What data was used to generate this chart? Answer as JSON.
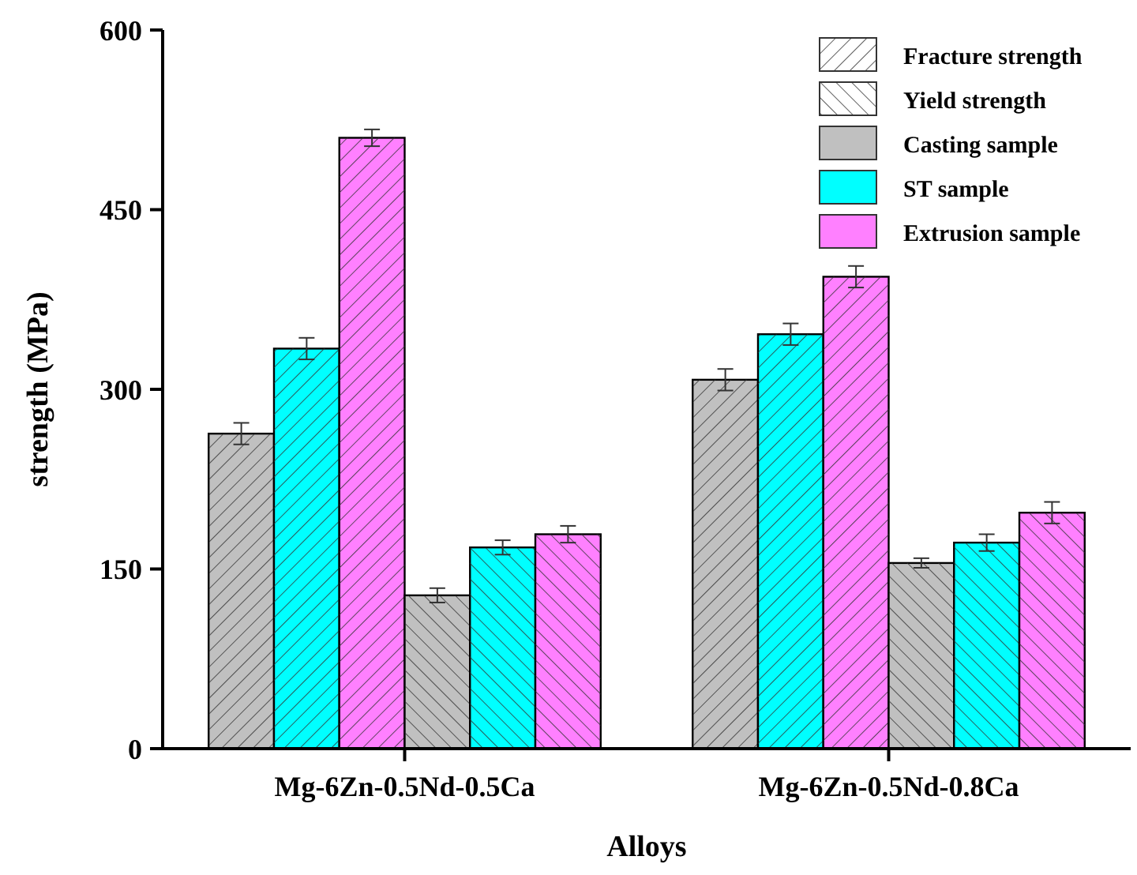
{
  "chart_data": {
    "type": "bar",
    "xlabel": "Alloys",
    "ylabel": "strength (MPa)",
    "categories": [
      "Mg-6Zn-0.5Nd-0.5Ca",
      "Mg-6Zn-0.5Nd-0.8Ca"
    ],
    "series": [
      {
        "name": "Casting sample",
        "color": "#c0c0c0",
        "values": [
          263,
          308
        ],
        "errors": [
          9,
          9
        ]
      },
      {
        "name": "ST sample",
        "color": "#00ffff",
        "values": [
          334,
          346
        ],
        "errors": [
          9,
          9
        ]
      },
      {
        "name": "Extrusion sample",
        "color": "#ff80ff",
        "values": [
          510,
          394
        ],
        "errors": [
          7,
          9
        ]
      },
      {
        "color": "#c0c0c0",
        "values": [
          128,
          155
        ],
        "errors": [
          6,
          4
        ]
      },
      {
        "color": "#00ffff",
        "values": [
          168,
          172
        ],
        "errors": [
          6,
          7
        ]
      },
      {
        "color": "#ff80ff",
        "values": [
          179,
          197
        ],
        "errors": [
          7,
          9
        ]
      }
    ],
    "annotations": [
      "Fracture strength",
      "Yield strength"
    ],
    "ylim": [
      0,
      600
    ],
    "yticks": [
      0,
      150,
      300,
      450,
      600
    ],
    "grid": false,
    "legend": "top right"
  }
}
